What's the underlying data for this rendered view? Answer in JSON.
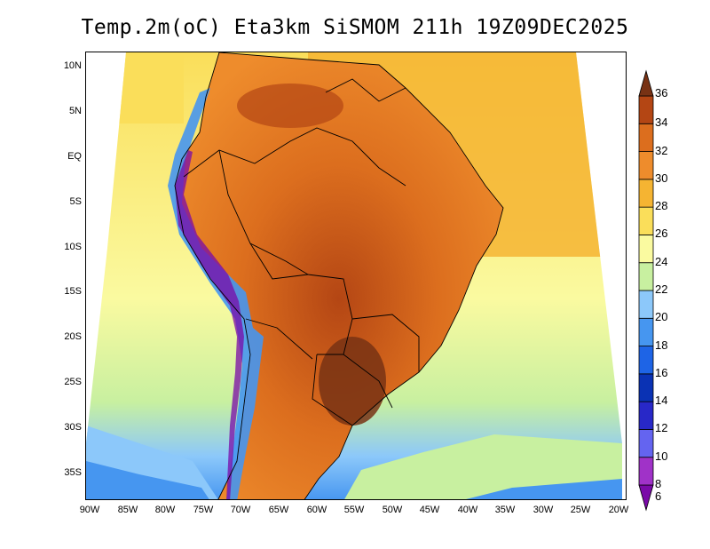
{
  "title": "Temp.2m(oC) Eta3km SiSMOM 211h 19Z09DEC2025",
  "lat_labels": [
    "10N",
    "5N",
    "EQ",
    "5S",
    "10S",
    "15S",
    "20S",
    "25S",
    "30S",
    "35S"
  ],
  "lon_labels": [
    "90W",
    "85W",
    "80W",
    "75W",
    "70W",
    "65W",
    "60W",
    "55W",
    "50W",
    "45W",
    "40W",
    "35W",
    "30W",
    "25W",
    "20W"
  ],
  "colorbar": {
    "labels": [
      "6",
      "8",
      "10",
      "12",
      "14",
      "16",
      "18",
      "20",
      "22",
      "24",
      "26",
      "28",
      "30",
      "32",
      "34",
      "36"
    ],
    "colors": [
      "#7a0aa8",
      "#a032c8",
      "#6464f0",
      "#2828c8",
      "#0a32b4",
      "#1e64e6",
      "#4696f0",
      "#8cc8fa",
      "#c8f0a0",
      "#fafaa0",
      "#fade5a",
      "#f5b432",
      "#ee8c2c",
      "#dc6e1e",
      "#b44614",
      "#783214"
    ]
  }
}
